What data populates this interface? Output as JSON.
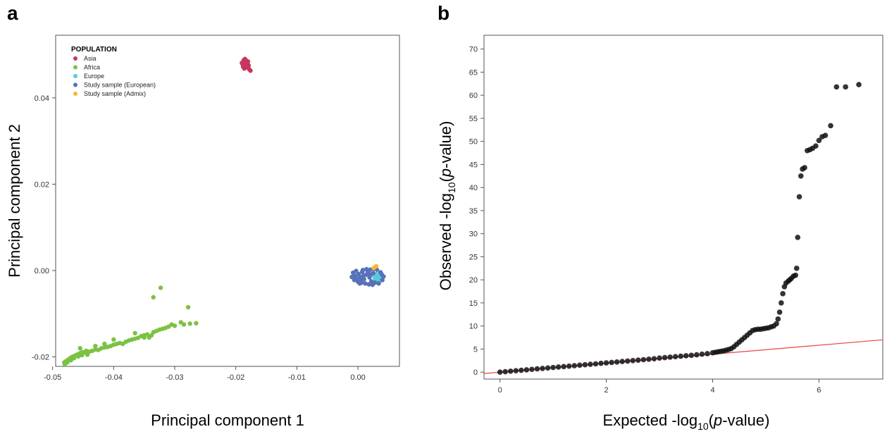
{
  "chart_data": [
    {
      "panel": "a",
      "type": "scatter",
      "xlabel": "Principal component 1",
      "ylabel": "Principal component 2",
      "xlim": [
        -0.0495,
        0.0068
      ],
      "ylim": [
        -0.0222,
        0.0545
      ],
      "xticks": [
        -0.05,
        -0.04,
        -0.03,
        -0.02,
        -0.01,
        0.0
      ],
      "xtick_labels": [
        "-0.05",
        "-0.04",
        "-0.03",
        "-0.02",
        "-0.01",
        "0.00"
      ],
      "yticks": [
        -0.02,
        0.0,
        0.02,
        0.04
      ],
      "ytick_labels": [
        "-0.02",
        "0.00",
        "0.02",
        "0.04"
      ],
      "legend": {
        "title": "POPULATION",
        "placement": "top-left"
      },
      "series": [
        {
          "name": "Asia",
          "color": "#c7365f",
          "points": [
            [
              -0.0187,
              0.0487
            ],
            [
              -0.0185,
              0.0482
            ],
            [
              -0.0189,
              0.0478
            ],
            [
              -0.0183,
              0.0485
            ],
            [
              -0.0186,
              0.0474
            ],
            [
              -0.0182,
              0.0479
            ],
            [
              -0.0188,
              0.0483
            ],
            [
              -0.0184,
              0.0488
            ],
            [
              -0.0181,
              0.0471
            ],
            [
              -0.0186,
              0.0468
            ],
            [
              -0.0183,
              0.0476
            ],
            [
              -0.019,
              0.0481
            ],
            [
              -0.0179,
              0.0475
            ],
            [
              -0.0185,
              0.049
            ],
            [
              -0.0178,
              0.0466
            ],
            [
              -0.0176,
              0.0463
            ],
            [
              -0.0184,
              0.047
            ],
            [
              -0.0188,
              0.0472
            ],
            [
              -0.018,
              0.0484
            ]
          ]
        },
        {
          "name": "Africa",
          "color": "#7cc242",
          "points": [
            [
              -0.0481,
              -0.0213
            ],
            [
              -0.0478,
              -0.021
            ],
            [
              -0.0475,
              -0.0207
            ],
            [
              -0.0472,
              -0.0204
            ],
            [
              -0.0469,
              -0.0201
            ],
            [
              -0.0466,
              -0.0199
            ],
            [
              -0.0463,
              -0.0197
            ],
            [
              -0.046,
              -0.0195
            ],
            [
              -0.0457,
              -0.0193
            ],
            [
              -0.0454,
              -0.0191
            ],
            [
              -0.0451,
              -0.0189
            ],
            [
              -0.048,
              -0.0217
            ],
            [
              -0.0476,
              -0.0213
            ],
            [
              -0.047,
              -0.0208
            ],
            [
              -0.0465,
              -0.0203
            ],
            [
              -0.0458,
              -0.0199
            ],
            [
              -0.0452,
              -0.0196
            ],
            [
              -0.0448,
              -0.019
            ],
            [
              -0.0445,
              -0.0186
            ],
            [
              -0.044,
              -0.0188
            ],
            [
              -0.0435,
              -0.0186
            ],
            [
              -0.043,
              -0.0183
            ],
            [
              -0.0425,
              -0.0184
            ],
            [
              -0.042,
              -0.018
            ],
            [
              -0.0415,
              -0.0178
            ],
            [
              -0.041,
              -0.0177
            ],
            [
              -0.0405,
              -0.0175
            ],
            [
              -0.04,
              -0.0172
            ],
            [
              -0.0395,
              -0.017
            ],
            [
              -0.039,
              -0.0168
            ],
            [
              -0.0385,
              -0.017
            ],
            [
              -0.038,
              -0.0165
            ],
            [
              -0.0375,
              -0.0162
            ],
            [
              -0.037,
              -0.016
            ],
            [
              -0.0365,
              -0.0158
            ],
            [
              -0.036,
              -0.0156
            ],
            [
              -0.0355,
              -0.0152
            ],
            [
              -0.035,
              -0.015
            ],
            [
              -0.0345,
              -0.0148
            ],
            [
              -0.0342,
              -0.0155
            ],
            [
              -0.0338,
              -0.015
            ],
            [
              -0.0335,
              -0.0143
            ],
            [
              -0.033,
              -0.014
            ],
            [
              -0.0325,
              -0.0137
            ],
            [
              -0.032,
              -0.0135
            ],
            [
              -0.0315,
              -0.0133
            ],
            [
              -0.031,
              -0.013
            ],
            [
              -0.03,
              -0.0128
            ],
            [
              -0.0285,
              -0.0125
            ],
            [
              -0.0275,
              -0.0123
            ],
            [
              -0.0265,
              -0.0122
            ],
            [
              -0.029,
              -0.012
            ],
            [
              -0.0335,
              -0.0062
            ],
            [
              -0.0323,
              -0.004
            ],
            [
              -0.0278,
              -0.0085
            ],
            [
              -0.0305,
              -0.0125
            ],
            [
              -0.035,
              -0.0155
            ],
            [
              -0.0365,
              -0.0145
            ],
            [
              -0.04,
              -0.016
            ],
            [
              -0.0415,
              -0.017
            ],
            [
              -0.043,
              -0.0175
            ],
            [
              -0.0443,
              -0.0195
            ],
            [
              -0.0455,
              -0.018
            ]
          ]
        },
        {
          "name": "Europe",
          "color": "#5bc8d6",
          "points": [
            [
              0.003,
              -0.0012
            ],
            [
              0.0032,
              -0.0015
            ],
            [
              0.0034,
              -0.001
            ],
            [
              0.0028,
              -0.0018
            ],
            [
              0.0036,
              -0.0013
            ],
            [
              0.0031,
              -0.0008
            ],
            [
              0.0035,
              -0.0019
            ],
            [
              0.0029,
              -0.0022
            ],
            [
              0.0037,
              -0.0017
            ],
            [
              0.0033,
              -0.0021
            ],
            [
              0.0038,
              -0.0011
            ],
            [
              0.0027,
              -0.0014
            ],
            [
              0.0032,
              -0.0025
            ],
            [
              0.0036,
              -0.0024
            ]
          ]
        },
        {
          "name": "Study sample (European)",
          "color": "#5672b8",
          "points": [
            [
              -0.0008,
              -0.0005
            ],
            [
              -0.0005,
              -0.0012
            ],
            [
              -0.0002,
              -0.0018
            ],
            [
              0.0001,
              -0.0008
            ],
            [
              0.0004,
              -0.0015
            ],
            [
              0.0007,
              -0.0003
            ],
            [
              0.001,
              -0.002
            ],
            [
              0.0013,
              -0.001
            ],
            [
              0.0016,
              -0.0002
            ],
            [
              0.0019,
              -0.0016
            ],
            [
              0.0022,
              -0.0025
            ],
            [
              0.0025,
              -0.0006
            ],
            [
              0.0028,
              -0.0028
            ],
            [
              0.0031,
              0.0002
            ],
            [
              0.0034,
              -0.003
            ],
            [
              0.0037,
              -0.0004
            ],
            [
              0.004,
              -0.0022
            ],
            [
              0.0042,
              -0.0014
            ],
            [
              -0.0006,
              -0.0022
            ],
            [
              0.0,
              -0.0026
            ],
            [
              0.0006,
              -0.0028
            ],
            [
              0.0012,
              -0.003
            ],
            [
              0.0018,
              -0.0032
            ],
            [
              0.0024,
              -0.0033
            ],
            [
              0.0008,
              0.0001
            ],
            [
              0.0014,
              0.0003
            ],
            [
              0.002,
              0.0002
            ],
            [
              0.0026,
              0.0004
            ],
            [
              -0.001,
              -0.0015
            ],
            [
              0.0003,
              -0.003
            ],
            [
              0.0017,
              -0.0007
            ],
            [
              0.0009,
              -0.0012
            ],
            [
              0.0021,
              -0.0009
            ],
            [
              0.0005,
              -0.002
            ],
            [
              0.0039,
              -0.0009
            ],
            [
              -0.0003,
              -0.0001
            ]
          ]
        },
        {
          "name": "Study sample (Admix)",
          "color": "#f5b731",
          "points": [
            [
              0.003,
              0.001
            ],
            [
              0.0026,
              0.0006
            ]
          ]
        }
      ]
    },
    {
      "panel": "b",
      "type": "scatter",
      "xlabel": "Expected -log10(p-value)",
      "ylabel": "Observed -log10(p-value)",
      "xlim": [
        -0.3,
        7.2
      ],
      "ylim": [
        -1.5,
        73
      ],
      "xticks": [
        0,
        2,
        4,
        6
      ],
      "xtick_labels": [
        "0",
        "2",
        "4",
        "6"
      ],
      "yticks": [
        0,
        5,
        10,
        15,
        20,
        25,
        30,
        35,
        40,
        45,
        50,
        55,
        60,
        65,
        70
      ],
      "ytick_labels": [
        "0",
        "5",
        "10",
        "15",
        "20",
        "25",
        "30",
        "35",
        "40",
        "45",
        "50",
        "55",
        "60",
        "65",
        "70"
      ],
      "reference_line": {
        "from": [
          -0.3,
          -0.3
        ],
        "to": [
          7.2,
          7.0
        ],
        "color": "#e8473d"
      },
      "series": [
        {
          "name": "",
          "color": "#111111",
          "points": [
            [
              0.0,
              0.0
            ],
            [
              0.1,
              0.1
            ],
            [
              0.2,
              0.2
            ],
            [
              0.3,
              0.3
            ],
            [
              0.4,
              0.4
            ],
            [
              0.5,
              0.5
            ],
            [
              0.6,
              0.6
            ],
            [
              0.7,
              0.7
            ],
            [
              0.8,
              0.8
            ],
            [
              0.9,
              0.9
            ],
            [
              1.0,
              1.0
            ],
            [
              1.1,
              1.1
            ],
            [
              1.2,
              1.2
            ],
            [
              1.3,
              1.3
            ],
            [
              1.4,
              1.4
            ],
            [
              1.5,
              1.5
            ],
            [
              1.6,
              1.6
            ],
            [
              1.7,
              1.7
            ],
            [
              1.8,
              1.8
            ],
            [
              1.9,
              1.9
            ],
            [
              2.0,
              2.0
            ],
            [
              2.1,
              2.1
            ],
            [
              2.2,
              2.2
            ],
            [
              2.3,
              2.3
            ],
            [
              2.4,
              2.4
            ],
            [
              2.5,
              2.5
            ],
            [
              2.6,
              2.6
            ],
            [
              2.7,
              2.7
            ],
            [
              2.8,
              2.8
            ],
            [
              2.9,
              2.9
            ],
            [
              3.0,
              3.05
            ],
            [
              3.1,
              3.15
            ],
            [
              3.2,
              3.25
            ],
            [
              3.3,
              3.35
            ],
            [
              3.4,
              3.45
            ],
            [
              3.5,
              3.55
            ],
            [
              3.6,
              3.65
            ],
            [
              3.7,
              3.75
            ],
            [
              3.8,
              3.9
            ],
            [
              3.9,
              4.0
            ],
            [
              4.0,
              4.2
            ],
            [
              4.05,
              4.3
            ],
            [
              4.1,
              4.4
            ],
            [
              4.15,
              4.5
            ],
            [
              4.2,
              4.6
            ],
            [
              4.25,
              4.75
            ],
            [
              4.3,
              4.9
            ],
            [
              4.35,
              5.1
            ],
            [
              4.4,
              5.5
            ],
            [
              4.45,
              6.0
            ],
            [
              4.5,
              6.5
            ],
            [
              4.55,
              7.0
            ],
            [
              4.6,
              7.5
            ],
            [
              4.65,
              8.0
            ],
            [
              4.7,
              8.5
            ],
            [
              4.75,
              9.0
            ],
            [
              4.8,
              9.2
            ],
            [
              4.85,
              9.3
            ],
            [
              4.9,
              9.3
            ],
            [
              4.95,
              9.4
            ],
            [
              5.0,
              9.5
            ],
            [
              5.05,
              9.6
            ],
            [
              5.1,
              9.8
            ],
            [
              5.15,
              10.0
            ],
            [
              5.2,
              10.5
            ],
            [
              5.23,
              11.5
            ],
            [
              5.26,
              13.0
            ],
            [
              5.29,
              15.0
            ],
            [
              5.32,
              17.0
            ],
            [
              5.35,
              18.5
            ],
            [
              5.38,
              19.3
            ],
            [
              5.42,
              19.7
            ],
            [
              5.45,
              20.0
            ],
            [
              5.48,
              20.3
            ],
            [
              5.52,
              20.8
            ],
            [
              5.56,
              21.0
            ],
            [
              5.58,
              22.5
            ],
            [
              5.6,
              29.2
            ],
            [
              5.63,
              38.0
            ],
            [
              5.66,
              42.5
            ],
            [
              5.69,
              44.0
            ],
            [
              5.73,
              44.3
            ],
            [
              5.78,
              48.0
            ],
            [
              5.83,
              48.2
            ],
            [
              5.88,
              48.5
            ],
            [
              5.94,
              49.0
            ],
            [
              6.0,
              50.2
            ],
            [
              6.06,
              51.0
            ],
            [
              6.12,
              51.3
            ],
            [
              6.22,
              53.4
            ],
            [
              6.33,
              61.8
            ],
            [
              6.5,
              61.8
            ],
            [
              6.75,
              62.3
            ]
          ]
        }
      ]
    }
  ]
}
